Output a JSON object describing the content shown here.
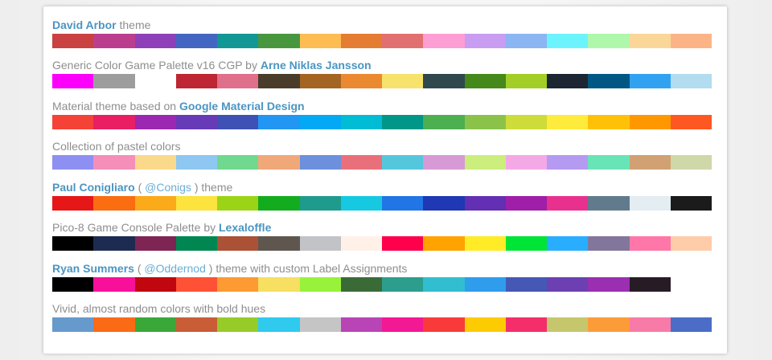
{
  "colors": {
    "link": "#4b95c2",
    "link_handle": "#6aaed6",
    "text": "#8e8e8e"
  },
  "themes": [
    {
      "link": "David Arbor",
      "suffix": " theme",
      "swatches": [
        "#c94140",
        "#bb3e8e",
        "#8d40b7",
        "#4266c2",
        "#119895",
        "#48973f",
        "#fdbd52",
        "#e47c32",
        "#e27070",
        "#fd9ed4",
        "#c89df2",
        "#8bb5f3",
        "#6cf4fe",
        "#aff7ab",
        "#fad798",
        "#fcb487"
      ]
    },
    {
      "prefix": "Generic Color Game Palette v16 CGP by ",
      "link": "Arne Niklas Jansson",
      "swatches": [
        "#fc00fc",
        "#9d9d9d",
        "",
        "#bd2632",
        "#e06f8b",
        "#493c2b",
        "#a46422",
        "#eb8931",
        "#f7e26b",
        "#2f484e",
        "#44891a",
        "#a3ce27",
        "#1b2632",
        "#005784",
        "#31a2f2",
        "#b2dcef"
      ]
    },
    {
      "prefix": "Material theme based on ",
      "link": "Google Material Design",
      "swatches": [
        "#f44336",
        "#e91e63",
        "#9c27b0",
        "#673ab7",
        "#3f51b5",
        "#2196f3",
        "#03a9f4",
        "#00bcd4",
        "#009688",
        "#4caf50",
        "#8bc34a",
        "#cddc39",
        "#ffeb3b",
        "#ffc107",
        "#ff9800",
        "#ff5722"
      ]
    },
    {
      "prefix": "Collection of pastel colors",
      "swatches": [
        "#8e8ff2",
        "#f58eb8",
        "#fbd98b",
        "#8ec7f2",
        "#70d88f",
        "#f1a879",
        "#6c90de",
        "#e9707a",
        "#55c7dc",
        "#d79ad6",
        "#cbee7d",
        "#f5a8e6",
        "#b59af1",
        "#69e4b7",
        "#d1a173",
        "#cfd8a8"
      ]
    },
    {
      "link": "Paul Conigliaro",
      "middle_open": " ( ",
      "handle": "@Conigs",
      "middle_close": " ) theme",
      "swatches": [
        "#e61717",
        "#fa6d11",
        "#fbaa19",
        "#fce33e",
        "#9bd417",
        "#14ac1f",
        "#1f9b8e",
        "#16c9e0",
        "#2175e5",
        "#1e39b3",
        "#632fb3",
        "#9f1fa8",
        "#e8308f",
        "#617b8d",
        "#e4edf1",
        "#1b1b1b"
      ]
    },
    {
      "prefix": "Pico-8 Game Console Palette by ",
      "link": "Lexaloffle",
      "swatches": [
        "#000000",
        "#1d2b53",
        "#7e2553",
        "#008751",
        "#ab5236",
        "#5f574f",
        "#c2c3c7",
        "#fff1e8",
        "#ff004d",
        "#ffa300",
        "#ffec27",
        "#00e436",
        "#29adff",
        "#83769c",
        "#ff77a8",
        "#ffccaa"
      ]
    },
    {
      "link": "Ryan Summers",
      "middle_open": " ( ",
      "handle": "@Oddernod",
      "middle_close": " ) theme with custom Label Assignments",
      "swatches": [
        "#000000",
        "#f8109a",
        "#c0060f",
        "#fe5135",
        "#fd9a31",
        "#f6df61",
        "#98f23a",
        "#3a6b37",
        "#2d9e8e",
        "#32bed1",
        "#2f9cec",
        "#4558b5",
        "#6c40b2",
        "#9a2fb1",
        "#271c26"
      ]
    },
    {
      "prefix": "Vivid, almost random colors with bold hues",
      "swatches": [
        "#6699cc",
        "#fb6a15",
        "#3aa739",
        "#c85d36",
        "#97cb28",
        "#2fcaee",
        "#c5c5c5",
        "#b844b5",
        "#f31893",
        "#f83a3a",
        "#fccb02",
        "#f42e6b",
        "#c6c76c",
        "#fc9c39",
        "#f87aa7",
        "#4b6dc7"
      ]
    }
  ]
}
